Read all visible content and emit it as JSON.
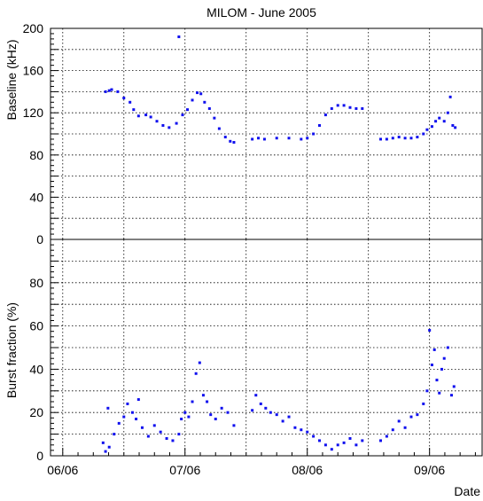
{
  "chart_data": {
    "type": "scatter",
    "title": "MILOM - June 2005",
    "xlabel": "Date",
    "x_unit": "days",
    "x_range": [
      5.9,
      9.43
    ],
    "x_ticks": [
      {
        "value": 6,
        "label": "06/06"
      },
      {
        "value": 7,
        "label": "07/06"
      },
      {
        "value": 8,
        "label": "08/06"
      },
      {
        "value": 9,
        "label": "09/06"
      }
    ],
    "x_grid_values": [
      6,
      6.5,
      7,
      7.5,
      8,
      8.5,
      9
    ],
    "marker_color": "#1010ee",
    "grid": true,
    "panels": [
      {
        "ylabel": "Baseline (kHz)",
        "ylim": [
          0,
          200
        ],
        "y_ticks": [
          0,
          40,
          80,
          120,
          160,
          200
        ],
        "y_grid_values": [
          0,
          20,
          40,
          60,
          80,
          100,
          120,
          140,
          160,
          180,
          200
        ],
        "series": [
          {
            "points": [
              [
                6.35,
                140
              ],
              [
                6.38,
                141
              ],
              [
                6.4,
                142
              ],
              [
                6.45,
                140
              ],
              [
                6.5,
                134
              ],
              [
                6.55,
                130
              ],
              [
                6.58,
                123
              ],
              [
                6.62,
                117
              ],
              [
                6.68,
                118
              ],
              [
                6.72,
                116
              ],
              [
                6.77,
                112
              ],
              [
                6.82,
                108
              ],
              [
                6.87,
                106
              ],
              [
                6.93,
                110
              ],
              [
                6.95,
                192
              ],
              [
                6.98,
                118
              ],
              [
                7.02,
                123
              ],
              [
                7.06,
                132
              ],
              [
                7.1,
                139
              ],
              [
                7.13,
                138
              ],
              [
                7.16,
                130
              ],
              [
                7.2,
                124
              ],
              [
                7.24,
                115
              ],
              [
                7.28,
                105
              ],
              [
                7.33,
                97
              ],
              [
                7.37,
                93
              ],
              [
                7.4,
                92
              ],
              [
                7.55,
                95
              ],
              [
                7.6,
                96
              ],
              [
                7.65,
                95
              ],
              [
                7.75,
                96
              ],
              [
                7.85,
                96
              ],
              [
                7.95,
                95
              ],
              [
                8.0,
                96
              ],
              [
                8.05,
                100
              ],
              [
                8.1,
                108
              ],
              [
                8.15,
                118
              ],
              [
                8.2,
                124
              ],
              [
                8.25,
                127
              ],
              [
                8.3,
                127
              ],
              [
                8.35,
                125
              ],
              [
                8.4,
                124
              ],
              [
                8.45,
                124
              ],
              [
                8.6,
                95
              ],
              [
                8.65,
                95
              ],
              [
                8.7,
                96
              ],
              [
                8.75,
                97
              ],
              [
                8.8,
                96
              ],
              [
                8.85,
                96
              ],
              [
                8.9,
                97
              ],
              [
                8.95,
                100
              ],
              [
                8.98,
                104
              ],
              [
                9.02,
                107
              ],
              [
                9.05,
                112
              ],
              [
                9.08,
                115
              ],
              [
                9.12,
                112
              ],
              [
                9.15,
                120
              ],
              [
                9.17,
                135
              ],
              [
                9.19,
                108
              ],
              [
                9.21,
                106
              ]
            ]
          }
        ]
      },
      {
        "ylabel": "Burst fraction (%)",
        "ylim": [
          0,
          100
        ],
        "y_ticks": [
          0,
          20,
          40,
          60,
          80
        ],
        "y_grid_values": [
          0,
          10,
          20,
          30,
          40,
          50,
          60,
          70,
          80,
          90,
          100
        ],
        "series": [
          {
            "points": [
              [
                6.33,
                6
              ],
              [
                6.35,
                2
              ],
              [
                6.37,
                22
              ],
              [
                6.38,
                4
              ],
              [
                6.42,
                10
              ],
              [
                6.46,
                15
              ],
              [
                6.5,
                18
              ],
              [
                6.53,
                24
              ],
              [
                6.57,
                20
              ],
              [
                6.6,
                17
              ],
              [
                6.62,
                26
              ],
              [
                6.65,
                13
              ],
              [
                6.7,
                9
              ],
              [
                6.75,
                14
              ],
              [
                6.8,
                11
              ],
              [
                6.85,
                8
              ],
              [
                6.9,
                7
              ],
              [
                6.95,
                10
              ],
              [
                6.97,
                17
              ],
              [
                7.0,
                20
              ],
              [
                7.03,
                18
              ],
              [
                7.06,
                25
              ],
              [
                7.09,
                38
              ],
              [
                7.12,
                43
              ],
              [
                7.15,
                28
              ],
              [
                7.18,
                25
              ],
              [
                7.21,
                19
              ],
              [
                7.25,
                17
              ],
              [
                7.3,
                22
              ],
              [
                7.35,
                20
              ],
              [
                7.4,
                14
              ],
              [
                7.55,
                21
              ],
              [
                7.58,
                28
              ],
              [
                7.62,
                24
              ],
              [
                7.66,
                22
              ],
              [
                7.7,
                20
              ],
              [
                7.75,
                19
              ],
              [
                7.8,
                16
              ],
              [
                7.85,
                18
              ],
              [
                7.9,
                13
              ],
              [
                7.95,
                12
              ],
              [
                8.0,
                11
              ],
              [
                8.05,
                9
              ],
              [
                8.1,
                7
              ],
              [
                8.15,
                5
              ],
              [
                8.2,
                3
              ],
              [
                8.25,
                5
              ],
              [
                8.3,
                6
              ],
              [
                8.35,
                8
              ],
              [
                8.4,
                5
              ],
              [
                8.45,
                7
              ],
              [
                8.6,
                7
              ],
              [
                8.65,
                9
              ],
              [
                8.7,
                12
              ],
              [
                8.75,
                16
              ],
              [
                8.8,
                13
              ],
              [
                8.85,
                18
              ],
              [
                8.9,
                19
              ],
              [
                8.95,
                24
              ],
              [
                8.98,
                30
              ],
              [
                9.0,
                58
              ],
              [
                9.02,
                42
              ],
              [
                9.04,
                49
              ],
              [
                9.06,
                35
              ],
              [
                9.08,
                29
              ],
              [
                9.1,
                40
              ],
              [
                9.12,
                45
              ],
              [
                9.15,
                50
              ],
              [
                9.18,
                28
              ],
              [
                9.2,
                32
              ]
            ]
          }
        ]
      }
    ]
  }
}
